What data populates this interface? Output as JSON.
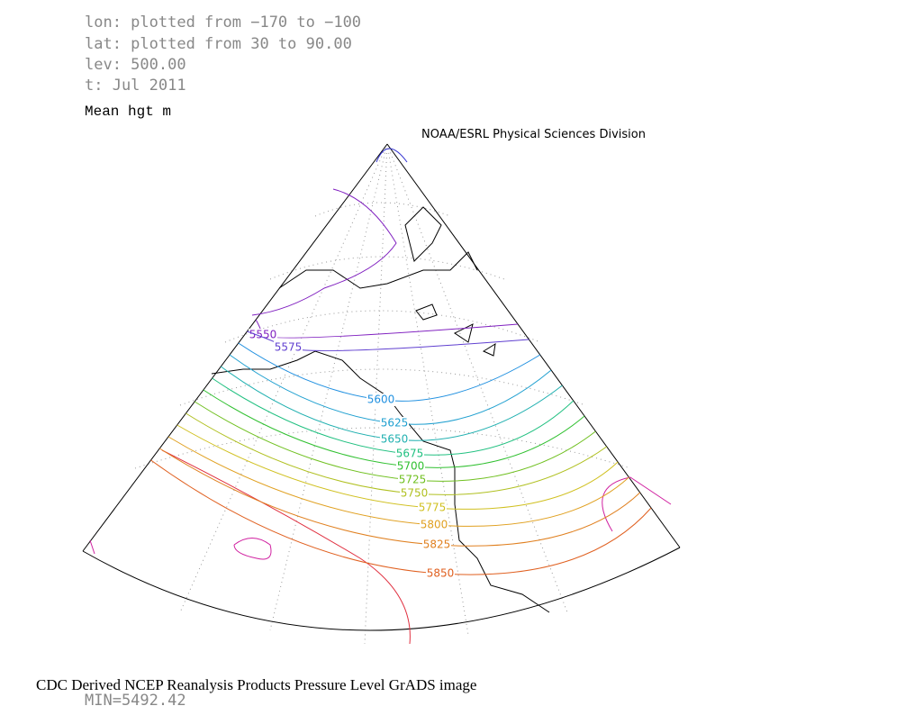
{
  "header": {
    "lines": [
      "lon: plotted from −170 to −100",
      "lat: plotted from 30 to 90.00",
      "lev: 500.00",
      "t: Jul 2011"
    ],
    "title": "Mean hgt m",
    "credit": "NOAA/ESRL Physical Sciences Division"
  },
  "contours": {
    "labels": [
      "5550",
      "5575",
      "5600",
      "5625",
      "5650",
      "5675",
      "5700",
      "5725",
      "5750",
      "5775",
      "5800",
      "5825",
      "5850"
    ]
  },
  "footer": {
    "text": "CDC Derived NCEP Reanalysis Products Pressure Level GrADS image",
    "min": "MIN=5492.42"
  }
}
